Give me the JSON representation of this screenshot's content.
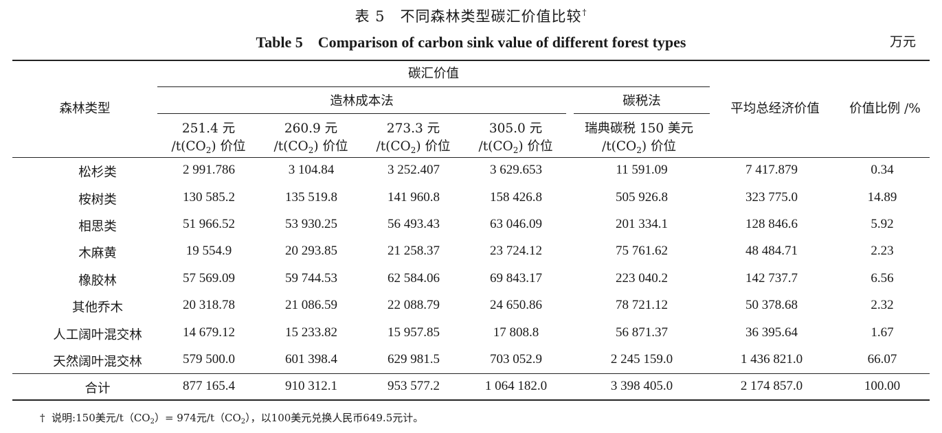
{
  "title": {
    "cn_prefix": "表 5　不同森林类型碳汇价值比较",
    "cn_mark": "†",
    "en": "Table 5　Comparison of carbon sink value of different forest types",
    "unit": "万元"
  },
  "header": {
    "forest_type": "森林类型",
    "carbon_value": "碳汇价值",
    "afforestation_method": "造林成本法",
    "carbon_tax_method": "碳税法",
    "avg_total": "平均总经济价值",
    "ratio": "价值比例 /%",
    "prices": [
      {
        "l1": "251.4 元",
        "l2a": "/t(CO",
        "l2sub": "2",
        "l2b": ") 价位"
      },
      {
        "l1": "260.9 元",
        "l2a": "/t(CO",
        "l2sub": "2",
        "l2b": ") 价位"
      },
      {
        "l1": "273.3 元",
        "l2a": "/t(CO",
        "l2sub": "2",
        "l2b": ") 价位"
      },
      {
        "l1": "305.0 元",
        "l2a": "/t(CO",
        "l2sub": "2",
        "l2b": ") 价位"
      },
      {
        "l1": "瑞典碳税 150 美元",
        "l2a": "/t(CO",
        "l2sub": "2",
        "l2b": ") 价位"
      }
    ]
  },
  "rows": [
    {
      "name": "松杉类",
      "v": [
        "2 991.786",
        "3 104.84",
        "3 252.407",
        "3 629.653",
        "11 591.09",
        "7 417.879",
        "0.34"
      ]
    },
    {
      "name": "桉树类",
      "v": [
        "130 585.2",
        "135 519.8",
        "141 960.8",
        "158 426.8",
        "505 926.8",
        "323 775.0",
        "14.89"
      ]
    },
    {
      "name": "相思类",
      "v": [
        "51 966.52",
        "53 930.25",
        "56 493.43",
        "63 046.09",
        "201 334.1",
        "128 846.6",
        "5.92"
      ]
    },
    {
      "name": "木麻黄",
      "v": [
        "19 554.9",
        "20 293.85",
        "21 258.37",
        "23 724.12",
        "75 761.62",
        "48 484.71",
        "2.23"
      ]
    },
    {
      "name": "橡胶林",
      "v": [
        "57 569.09",
        "59 744.53",
        "62 584.06",
        "69 843.17",
        "223 040.2",
        "142 737.7",
        "6.56"
      ]
    },
    {
      "name": "其他乔木",
      "v": [
        "20 318.78",
        "21 086.59",
        "22 088.79",
        "24 650.86",
        "78 721.12",
        "50 378.68",
        "2.32"
      ]
    },
    {
      "name": "人工阔叶混交林",
      "v": [
        "14 679.12",
        "15 233.82",
        "15 957.85",
        "17 808.8",
        "56 871.37",
        "36 395.64",
        "1.67"
      ]
    },
    {
      "name": "天然阔叶混交林",
      "v": [
        "579 500.0",
        "601 398.4",
        "629 981.5",
        "703 052.9",
        "2 245 159.0",
        "1 436 821.0",
        "66.07"
      ]
    }
  ],
  "total": {
    "name": "合计",
    "v": [
      "877 165.4",
      "910 312.1",
      "953 577.2",
      "1 064 182.0",
      "3 398 405.0",
      "2 174 857.0",
      "100.00"
    ]
  },
  "footnote": {
    "mark": "†",
    "a": "说明:150美元/t（CO",
    "sub1": "2",
    "b": "）= 974元/t（CO",
    "sub2": "2",
    "c": "），以100美元兑换人民币649.5元计。"
  }
}
